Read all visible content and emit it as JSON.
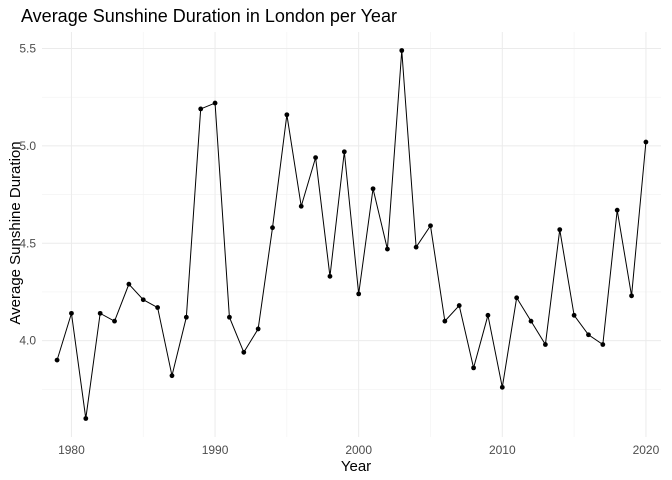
{
  "chart_data": {
    "type": "line",
    "title": "Average Sunshine Duration in London per Year",
    "xlabel": "Year",
    "ylabel": "Average Sunshine Duration",
    "x_ticks": [
      1980,
      1990,
      2000,
      2010,
      2020
    ],
    "y_ticks": [
      4.0,
      4.5,
      5.0,
      5.5
    ],
    "y_tick_labels": [
      "4.0",
      "4.5",
      "5.0",
      "5.5"
    ],
    "xlim": [
      1977.95,
      2021.05
    ],
    "ylim": [
      3.505,
      5.585
    ],
    "grid": true,
    "point_color": "#000000",
    "line_color": "#000000",
    "x": [
      1979,
      1980,
      1981,
      1982,
      1983,
      1984,
      1985,
      1986,
      1987,
      1988,
      1989,
      1990,
      1991,
      1992,
      1993,
      1994,
      1995,
      1996,
      1997,
      1998,
      1999,
      2000,
      2001,
      2002,
      2003,
      2004,
      2005,
      2006,
      2007,
      2008,
      2009,
      2010,
      2011,
      2012,
      2013,
      2014,
      2015,
      2016,
      2017,
      2018,
      2019,
      2020
    ],
    "values": [
      3.9,
      4.14,
      3.6,
      4.14,
      4.1,
      4.29,
      4.21,
      4.17,
      3.82,
      4.12,
      5.19,
      5.22,
      4.12,
      3.94,
      4.06,
      4.58,
      5.16,
      4.69,
      4.94,
      4.33,
      4.97,
      4.24,
      4.78,
      4.47,
      5.49,
      4.48,
      4.59,
      4.1,
      4.18,
      3.86,
      4.13,
      3.76,
      4.22,
      4.1,
      3.98,
      4.57,
      4.13,
      4.03,
      3.98,
      4.67,
      4.23,
      5.02
    ]
  }
}
